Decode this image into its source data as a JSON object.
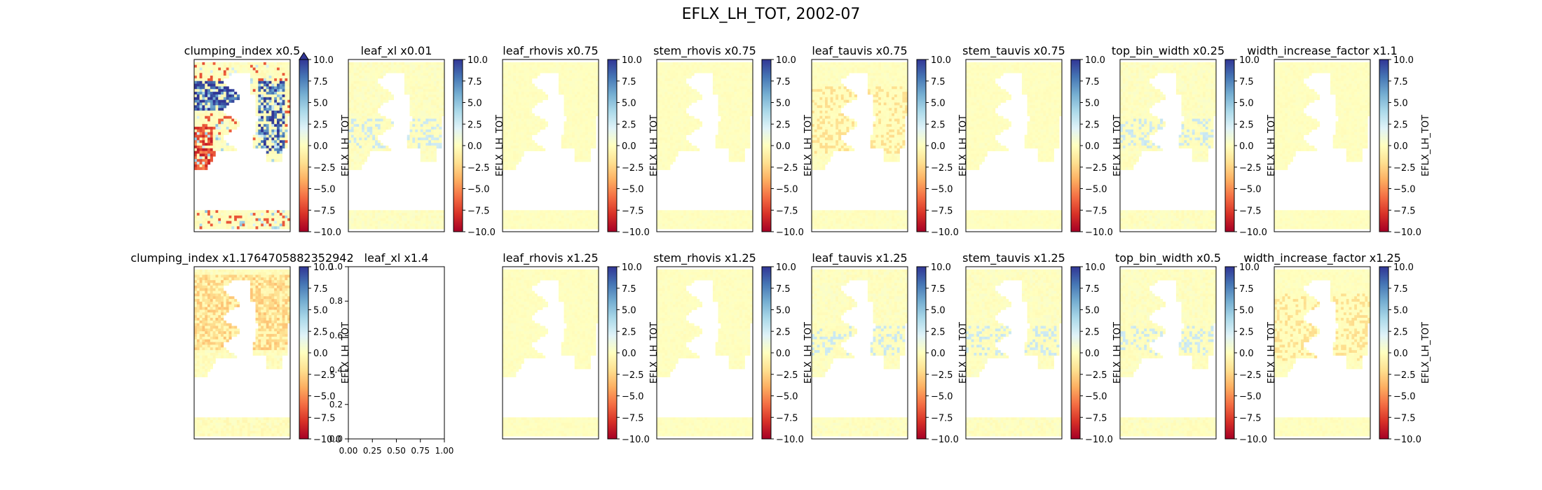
{
  "figure": {
    "title": "EFLX_LH_TOT, 2002-07"
  },
  "chart_data": {
    "type": "heatmap",
    "title": "EFLX_LH_TOT, 2002-07",
    "colormap": "RdYlBu",
    "colorbar": {
      "label": "EFLX_LH_TOT",
      "vmin": -10.0,
      "vmax": 10.0,
      "ticks": [
        "10.0",
        "7.5",
        "5.0",
        "2.5",
        "0.0",
        "−2.5",
        "−5.0",
        "−7.5",
        "−10.0"
      ],
      "extend_max_on_first_panel": true
    },
    "panels": [
      {
        "title": "clumping_index x0.5",
        "has_map": true,
        "pattern": "strong"
      },
      {
        "title": "leaf_xl x0.01",
        "has_map": true,
        "pattern": "faint-blue"
      },
      {
        "title": "leaf_rhovis x0.75",
        "has_map": true,
        "pattern": "uniform"
      },
      {
        "title": "stem_rhovis x0.75",
        "has_map": true,
        "pattern": "uniform"
      },
      {
        "title": "leaf_tauvis x0.75",
        "has_map": true,
        "pattern": "faint-orange"
      },
      {
        "title": "stem_tauvis x0.75",
        "has_map": true,
        "pattern": "uniform"
      },
      {
        "title": "top_bin_width x0.25",
        "has_map": true,
        "pattern": "faint-blue"
      },
      {
        "title": "width_increase_factor x1.1",
        "has_map": true,
        "pattern": "uniform"
      },
      {
        "title": "clumping_index x1.1764705882352942",
        "has_map": true,
        "pattern": "orange"
      },
      {
        "title": "leaf_xl x1.4",
        "has_map": false,
        "empty_axes": {
          "xticks": [
            "0.00",
            "0.25",
            "0.50",
            "0.75",
            "1.00"
          ],
          "yticks": [
            "0.0",
            "0.2",
            "0.4",
            "0.6",
            "0.8",
            "1.0"
          ]
        }
      },
      {
        "title": "leaf_rhovis x1.25",
        "has_map": true,
        "pattern": "uniform"
      },
      {
        "title": "stem_rhovis x1.25",
        "has_map": true,
        "pattern": "uniform"
      },
      {
        "title": "leaf_tauvis x1.25",
        "has_map": true,
        "pattern": "faint-blue"
      },
      {
        "title": "stem_tauvis x1.25",
        "has_map": true,
        "pattern": "faint-blue"
      },
      {
        "title": "top_bin_width x0.5",
        "has_map": true,
        "pattern": "faint-blue"
      },
      {
        "title": "width_increase_factor x1.25",
        "has_map": true,
        "pattern": "faint-orange"
      }
    ]
  },
  "colors": {
    "red": "#a50026",
    "yellow": "#ffffbf",
    "blue": "#313695"
  }
}
